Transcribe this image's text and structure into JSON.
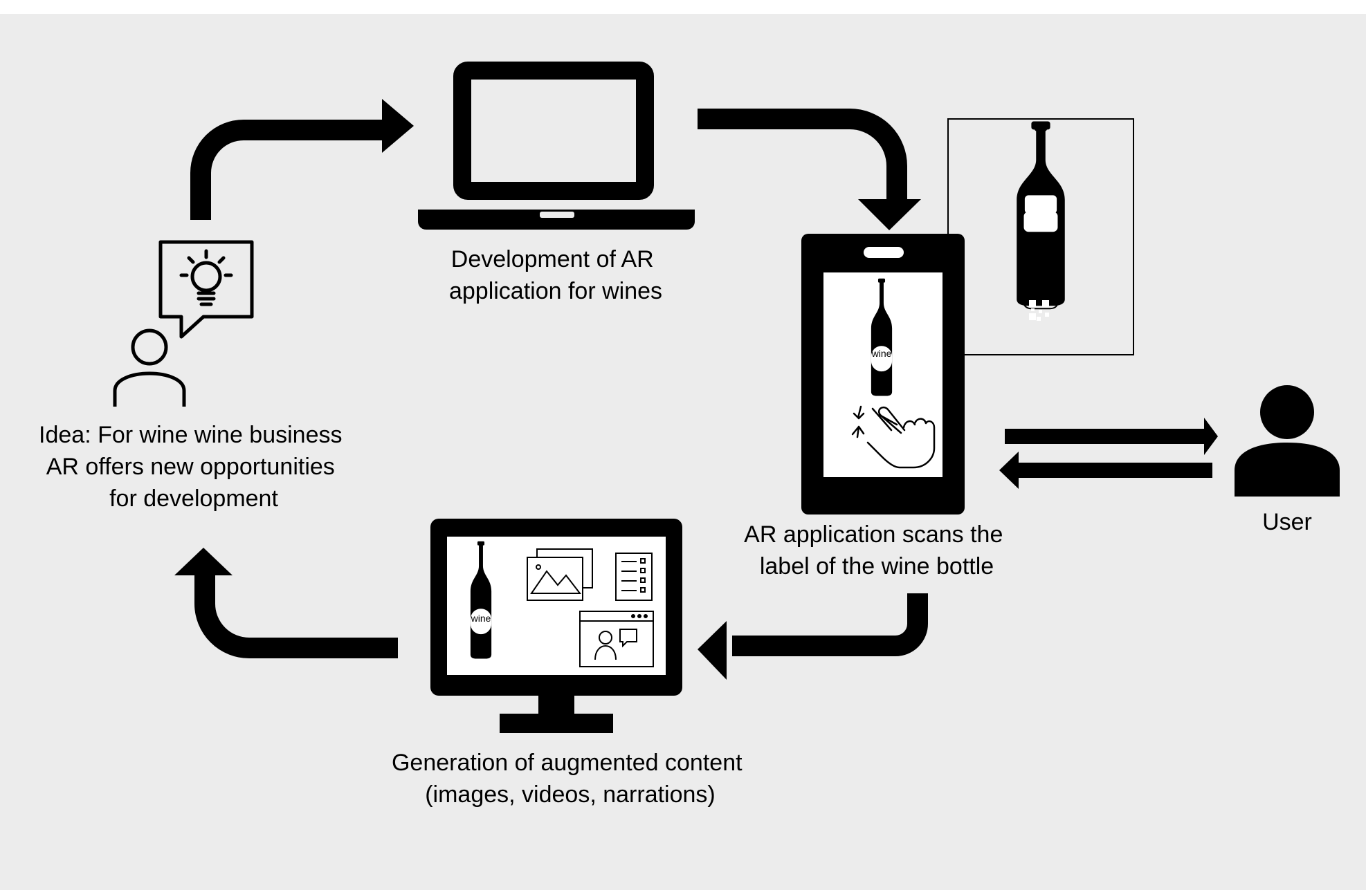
{
  "colors": {
    "background": "#ececec",
    "ink": "#000000",
    "screen": "#ffffff"
  },
  "stages": {
    "idea": {
      "lines": [
        "Idea: For wine wine business",
        "AR offers new opportunities",
        "for development"
      ]
    },
    "development": {
      "lines": [
        "Development of AR",
        "application for wines"
      ]
    },
    "scan": {
      "lines": [
        "AR application scans the",
        "label of the wine bottle"
      ]
    },
    "generation": {
      "lines": [
        "Generation of augmented content",
        "(images, videos, narrations)"
      ]
    },
    "user": {
      "label": "User"
    }
  },
  "bottle_label": "wine",
  "icons": [
    "lightbulb-icon",
    "speech-bubble-icon",
    "person-outline-icon",
    "laptop-icon",
    "smartphone-icon",
    "wine-bottle-icon",
    "qr-code-icon",
    "hand-tap-icon",
    "monitor-icon",
    "image-icon",
    "checklist-icon",
    "video-call-icon",
    "user-icon"
  ]
}
